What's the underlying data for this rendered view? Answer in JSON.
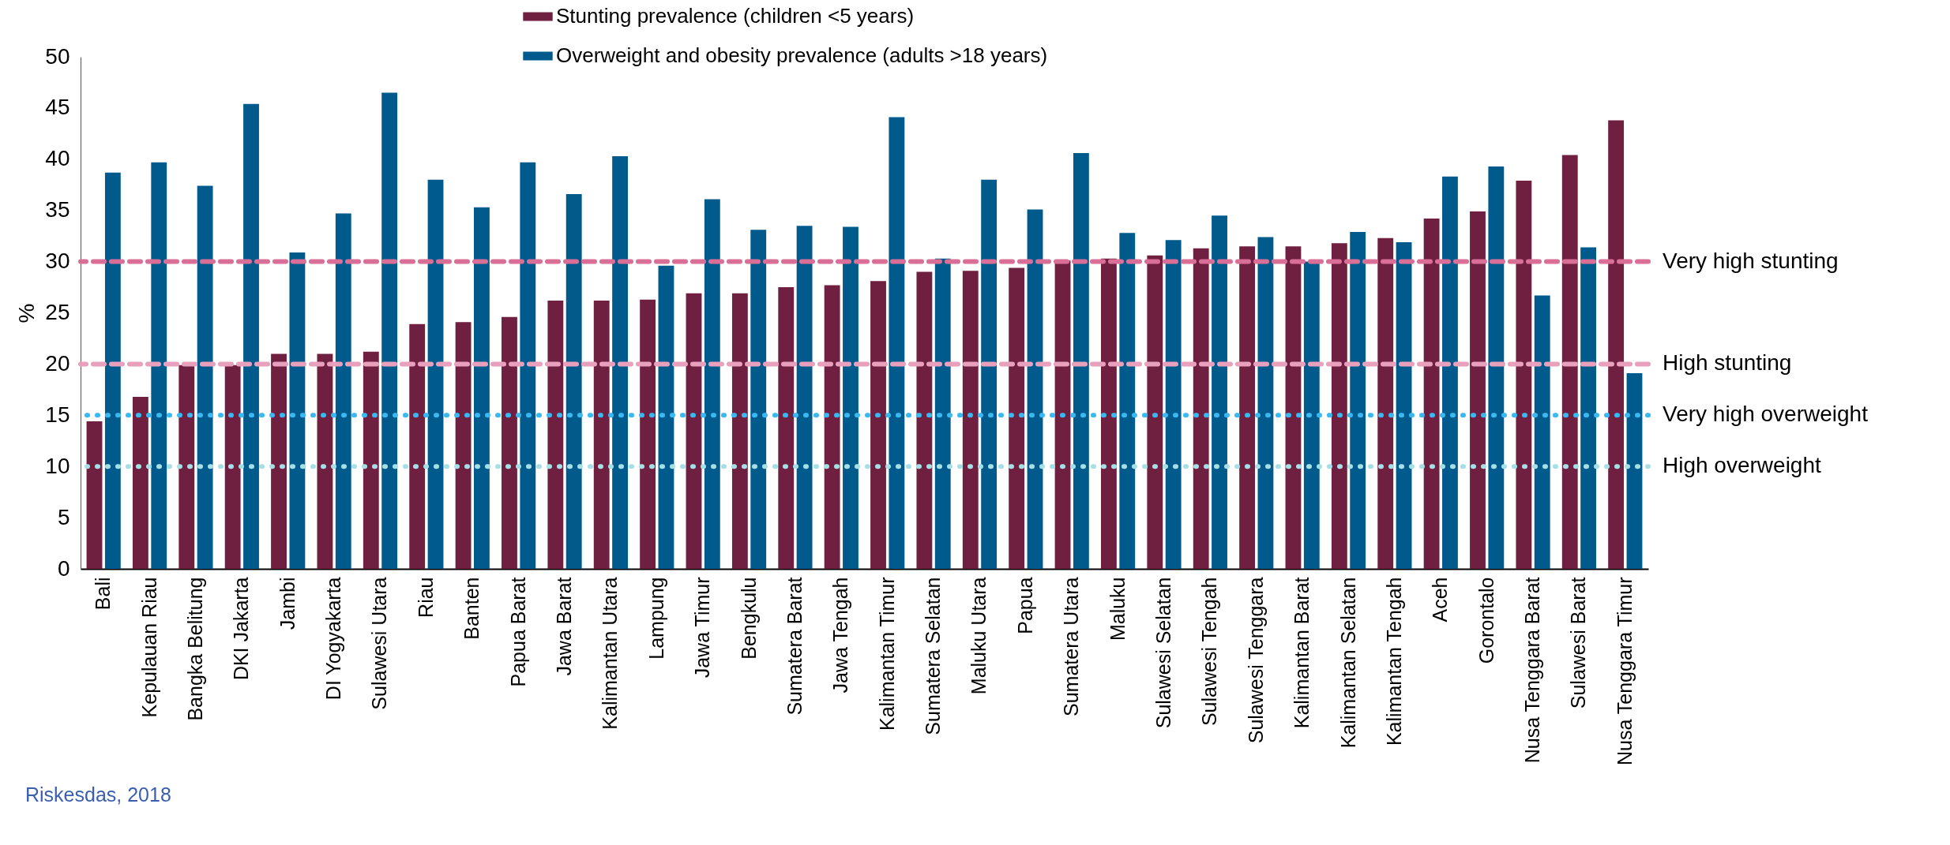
{
  "chart_data": {
    "type": "bar",
    "ylabel": "%",
    "categories": [
      "Bali",
      "Kepulauan Riau",
      "Bangka Belitung",
      "DKI Jakarta",
      "Jambi",
      "DI Yogyakarta",
      "Sulawesi Utara",
      "Riau",
      "Banten",
      "Papua Barat",
      "Jawa Barat",
      "Kalimantan Utara",
      "Lampung",
      "Jawa Timur",
      "Bengkulu",
      "Sumatera Barat",
      "Jawa Tengah",
      "Kalimantan Timur",
      "Sumatera Selatan",
      "Maluku Utara",
      "Papua",
      "Sumatera Utara",
      "Maluku",
      "Sulawesi Selatan",
      "Sulawesi Tengah",
      "Sulawesi Tenggara",
      "Kalimantan Barat",
      "Kalimantan Selatan",
      "Kalimantan Tengah",
      "Aceh",
      "Gorontalo",
      "Nusa Tenggara Barat",
      "Sulawesi Barat",
      "Nusa Tenggara Timur"
    ],
    "series": [
      {
        "name": "Stunting prevalence (children <5 years)",
        "color": "#6f1f3f",
        "values": [
          14.4,
          16.8,
          19.9,
          19.9,
          21.0,
          21.0,
          21.2,
          23.9,
          24.1,
          24.6,
          26.2,
          26.2,
          26.3,
          26.9,
          26.9,
          27.5,
          27.7,
          28.1,
          29.0,
          29.1,
          29.4,
          30.1,
          30.3,
          30.6,
          31.3,
          31.5,
          31.5,
          31.8,
          32.3,
          34.2,
          34.9,
          37.9,
          40.4,
          43.8
        ]
      },
      {
        "name": "Overweight and obesity prevalence (adults >18 years)",
        "color": "#005b8c",
        "values": [
          38.7,
          39.7,
          37.4,
          45.4,
          30.9,
          34.7,
          46.5,
          38.0,
          35.3,
          39.7,
          36.6,
          40.3,
          29.6,
          36.1,
          33.1,
          33.5,
          33.4,
          44.1,
          30.3,
          38.0,
          35.1,
          40.6,
          32.8,
          32.1,
          34.5,
          32.4,
          30.0,
          32.9,
          31.9,
          38.3,
          39.3,
          26.7,
          31.4,
          19.1
        ]
      }
    ],
    "ylim": [
      0,
      50
    ],
    "yticks": [
      0,
      5,
      10,
      15,
      20,
      25,
      30,
      35,
      40,
      45,
      50
    ],
    "grid": false,
    "legend": "top",
    "ref_lines": [
      {
        "axis": "y",
        "value": 30,
        "label": "Very high stunting",
        "color": "#d96f97",
        "line_style": "dashed"
      },
      {
        "axis": "y",
        "value": 20,
        "label": "High stunting",
        "color": "#e8a0bd",
        "line_style": "dashed"
      },
      {
        "axis": "y",
        "value": 15,
        "label": "Very high overweight",
        "color": "#3ab8f0",
        "line_style": "dotted"
      },
      {
        "axis": "y",
        "value": 10,
        "label": "High overweight",
        "color": "#a7dfe6",
        "line_style": "dotted"
      }
    ],
    "annotations": [
      "Riskesdas, 2018"
    ]
  }
}
